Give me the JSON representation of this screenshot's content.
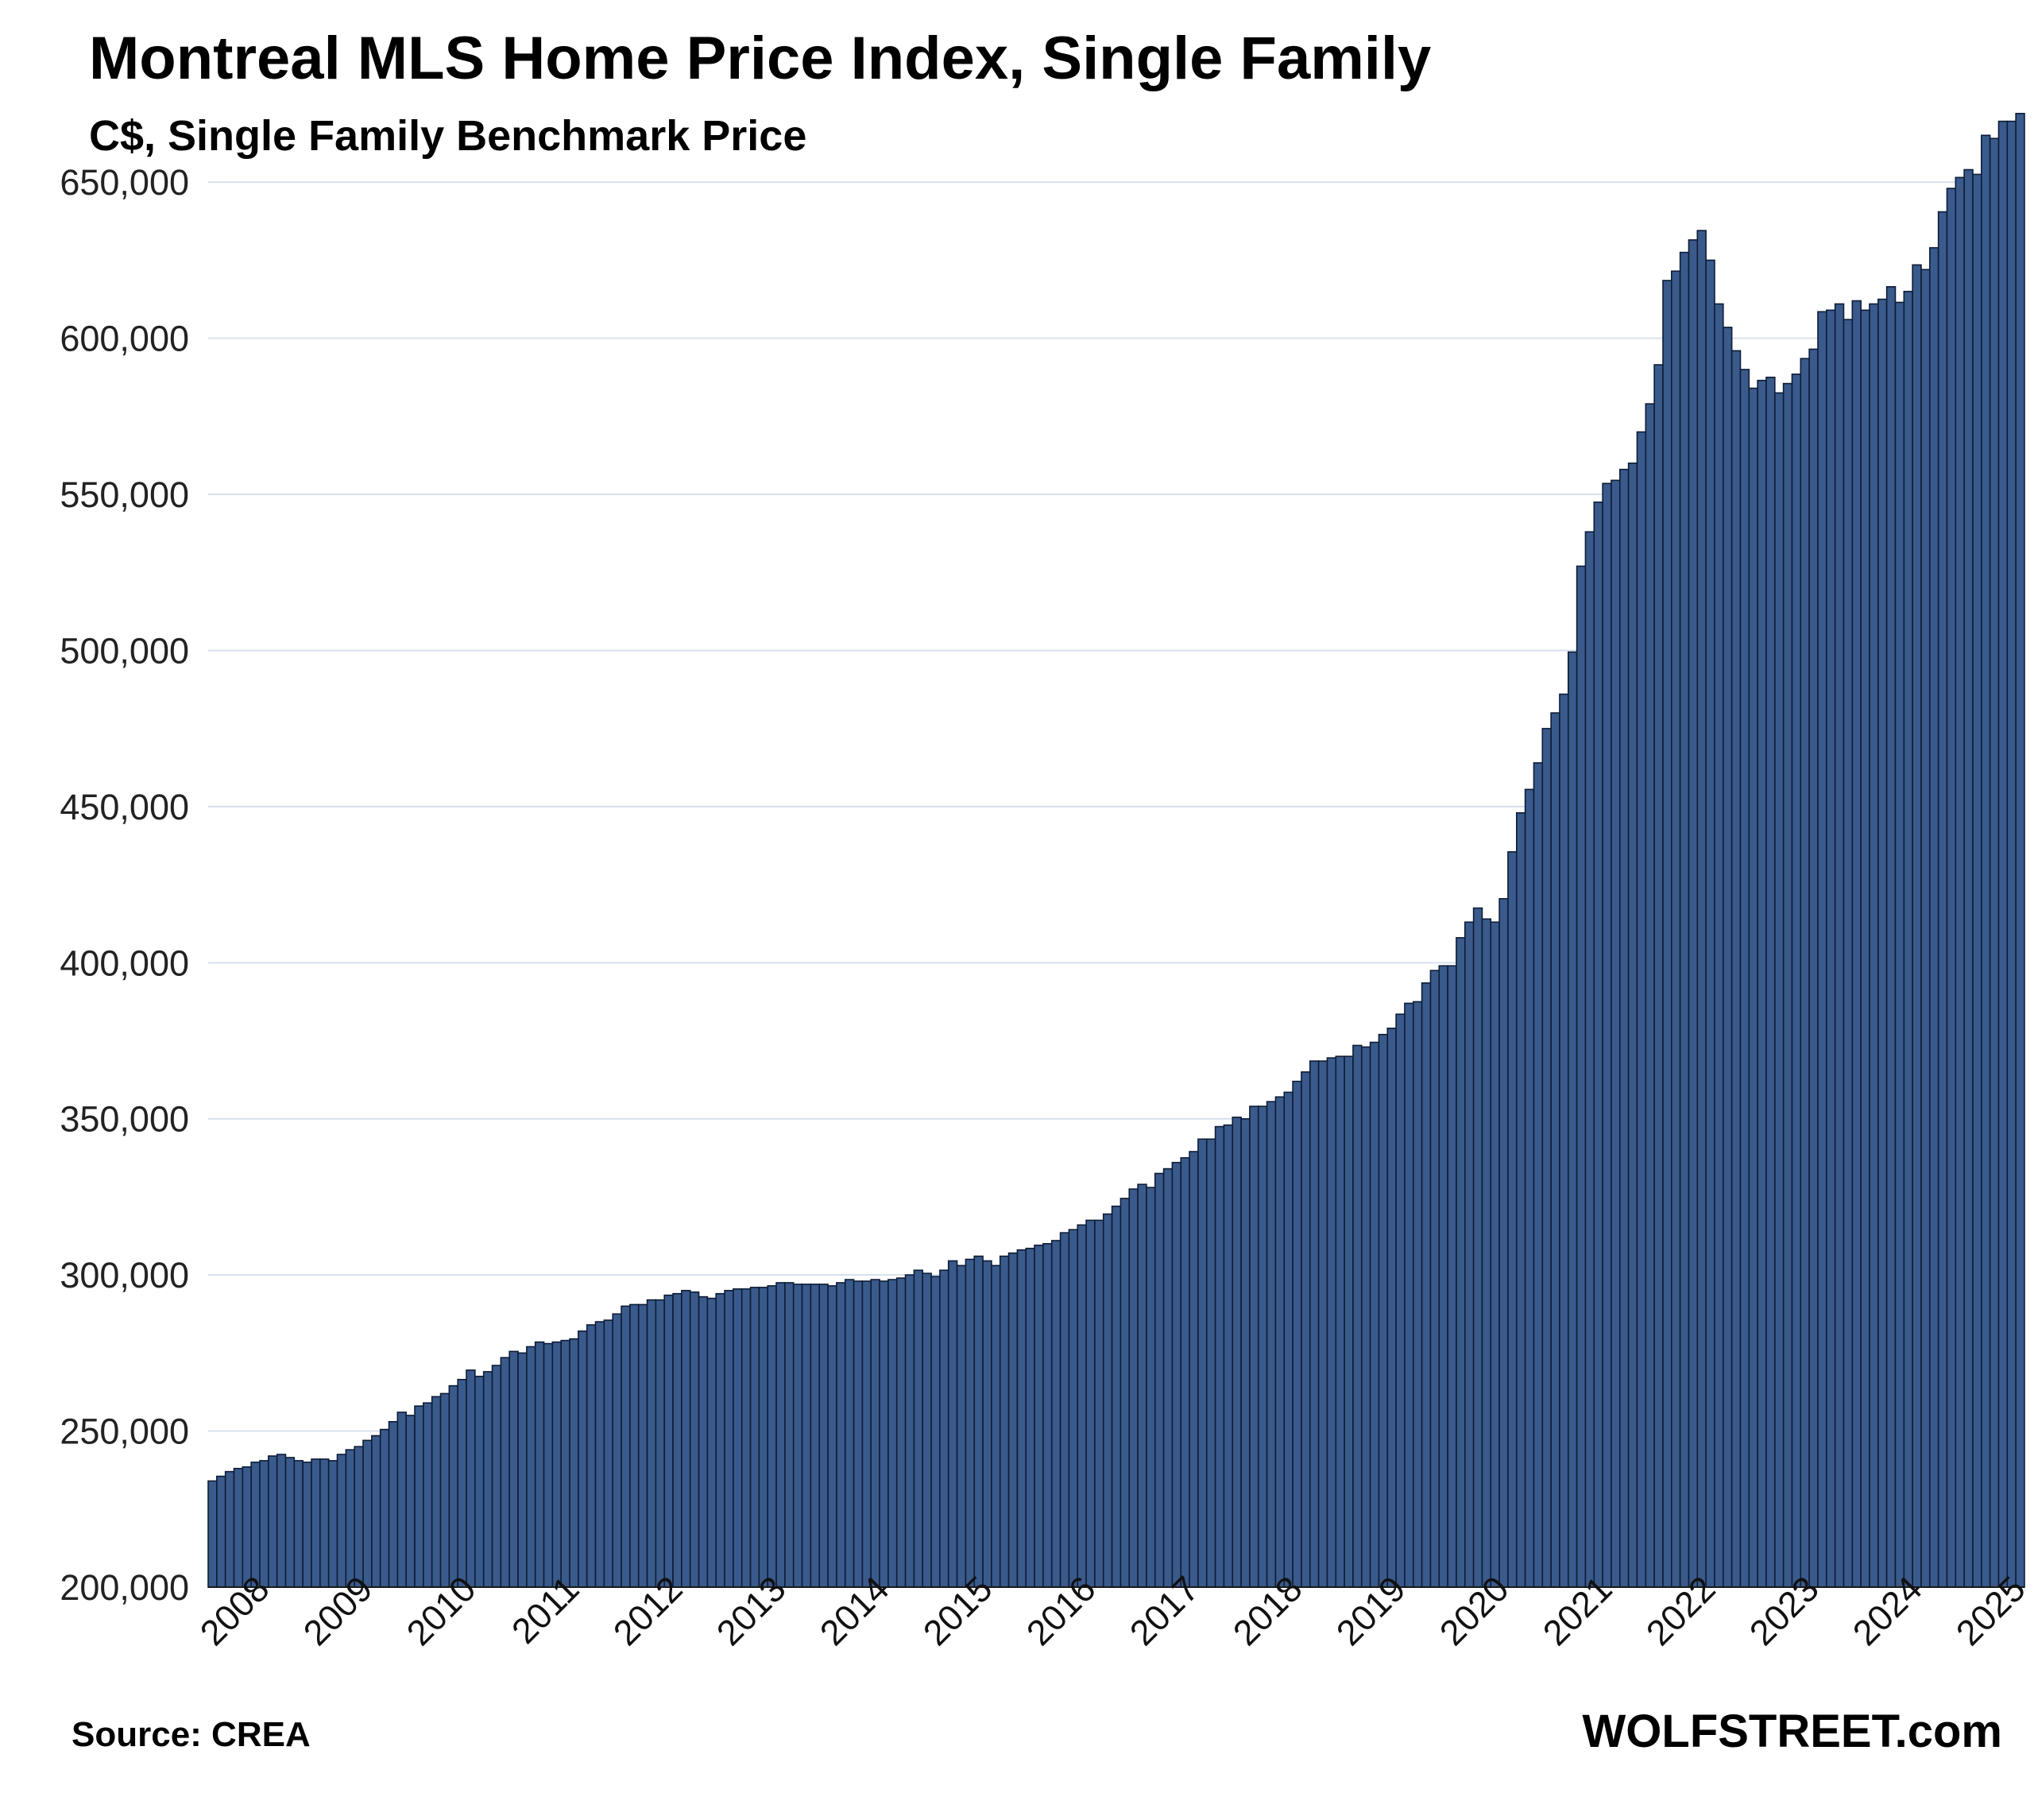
{
  "header": {
    "title": "Montreal MLS Home Price Index, Single Family",
    "subtitle": "C$, Single Family Benchmark Price"
  },
  "footer": {
    "source": "Source: CREA",
    "brand": "WOLFSTREET.com"
  },
  "colors": {
    "bar_fill": "#3a5a8c",
    "bar_stroke": "#0d1d35",
    "grid": "#d6e0ec"
  },
  "chart_data": {
    "type": "bar",
    "title": "Montreal MLS Home Price Index, Single Family",
    "subtitle": "C$, Single Family Benchmark Price",
    "xlabel": "",
    "ylabel": "",
    "ylim": [
      200000,
      675000
    ],
    "y_ticks": [
      200000,
      250000,
      300000,
      350000,
      400000,
      450000,
      500000,
      550000,
      600000,
      650000
    ],
    "y_tick_labels": [
      "200,000",
      "250,000",
      "300,000",
      "350,000",
      "400,000",
      "450,000",
      "500,000",
      "550,000",
      "600,000",
      "650,000"
    ],
    "x_tick_labels": [
      "2008",
      "2009",
      "2010",
      "2011",
      "2012",
      "2013",
      "2014",
      "2015",
      "2016",
      "2017",
      "2018",
      "2019",
      "2020",
      "2021",
      "2022",
      "2023",
      "2024",
      "2025"
    ],
    "grid": "horizontal",
    "legend": "none",
    "frequency": "monthly",
    "start": "2008-01",
    "series": [
      {
        "values": [
          234000,
          235500,
          237000,
          238000,
          238500,
          240000,
          240500,
          242000,
          242500,
          241500,
          240500,
          240000,
          241000,
          241000,
          240500,
          242500,
          244000,
          245000,
          247000,
          248500,
          250500,
          253000,
          256000,
          255000,
          258000,
          259000,
          261000,
          262000,
          264500,
          266500,
          269500,
          267500,
          269000,
          271000,
          273500,
          275500,
          275000,
          277000,
          278500,
          278000,
          278500,
          279000,
          279500,
          282000,
          284000,
          285000,
          285500,
          287500,
          290000,
          290500,
          290500,
          292000,
          292000,
          293500,
          294000,
          295000,
          294500,
          293000,
          292500,
          294000,
          295000,
          295500,
          295500,
          296000,
          296000,
          296500,
          297500,
          297500,
          297000,
          297000,
          297000,
          297000,
          296500,
          297500,
          298500,
          298000,
          298000,
          298500,
          298000,
          298500,
          299000,
          300000,
          301500,
          300500,
          299500,
          301500,
          304500,
          303000,
          305000,
          306000,
          304500,
          303000,
          306000,
          307000,
          308000,
          308500,
          309500,
          310000,
          311000,
          313500,
          314500,
          316000,
          317500,
          317500,
          319500,
          322000,
          324500,
          327500,
          329000,
          328000,
          332500,
          334000,
          336000,
          337500,
          339500,
          343500,
          343500,
          347500,
          348000,
          350500,
          350000,
          354000,
          354000,
          355500,
          357000,
          358500,
          362000,
          365000,
          368500,
          368500,
          369500,
          370000,
          370000,
          373500,
          373000,
          374500,
          377000,
          379000,
          383500,
          387000,
          387500,
          393500,
          397500,
          399000,
          399000,
          408000,
          413000,
          417500,
          414000,
          413000,
          420500,
          435500,
          448000,
          455500,
          464000,
          475000,
          480000,
          486000,
          499500,
          527000,
          538000,
          547500,
          553500,
          554500,
          558000,
          560000,
          570000,
          579000,
          591500,
          618500,
          621500,
          627500,
          631500,
          634500,
          625000,
          611000,
          603500,
          596000,
          590000,
          584000,
          586500,
          587500,
          582500,
          585500,
          588500,
          593500,
          596500,
          608500,
          609000,
          611000,
          606000,
          612000,
          609000,
          611000,
          612500,
          616500,
          611500,
          615000,
          623500,
          622000,
          629000,
          640500,
          648000,
          651500,
          654000,
          652500,
          665000,
          664000,
          669500,
          669500,
          672000
        ]
      }
    ]
  }
}
